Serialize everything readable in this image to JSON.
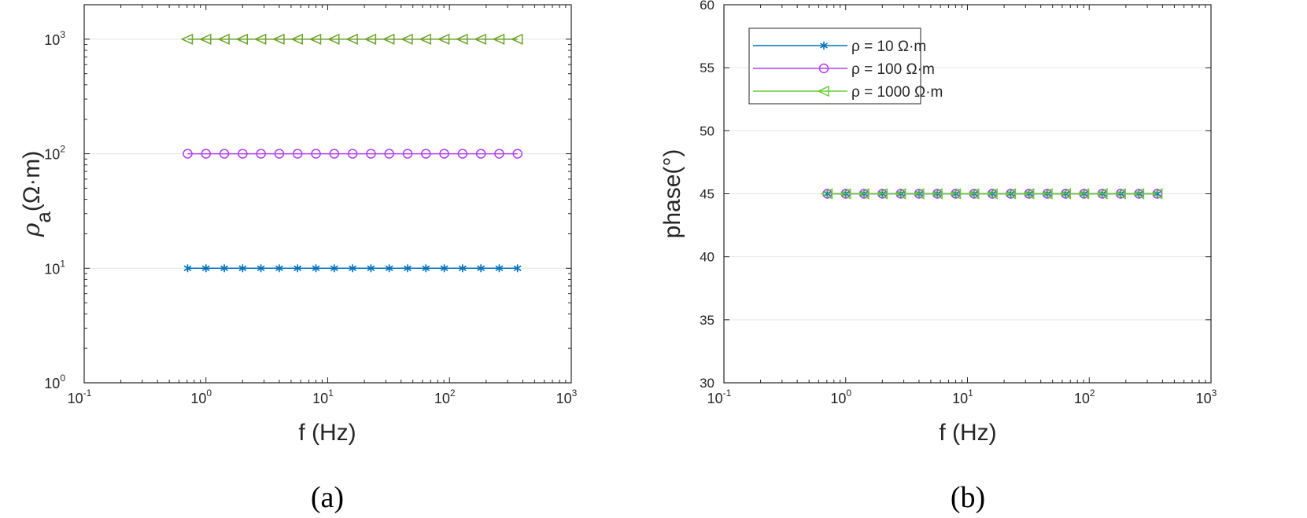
{
  "chart_data": [
    {
      "panel_label": "(a)",
      "type": "line",
      "xscale": "log",
      "yscale": "log",
      "xlabel": "f (Hz)",
      "ylabel_main": "ρ",
      "ylabel_sub": "a",
      "ylabel_unit": "(Ω·m)",
      "xlim": [
        0.1,
        1000
      ],
      "ylim": [
        1,
        2000
      ],
      "xticks": [
        {
          "base": "10",
          "exp": "-1",
          "v": 0.1
        },
        {
          "base": "10",
          "exp": "0",
          "v": 1
        },
        {
          "base": "10",
          "exp": "1",
          "v": 10
        },
        {
          "base": "10",
          "exp": "2",
          "v": 100
        },
        {
          "base": "10",
          "exp": "3",
          "v": 1000
        }
      ],
      "yticks": [
        {
          "base": "10",
          "exp": "0",
          "v": 1
        },
        {
          "base": "10",
          "exp": "1",
          "v": 10
        },
        {
          "base": "10",
          "exp": "2",
          "v": 100
        },
        {
          "base": "10",
          "exp": "3",
          "v": 1000
        }
      ],
      "grid": "y-major",
      "x": [
        0.707,
        1,
        1.414,
        2,
        2.828,
        4,
        5.657,
        8,
        11.31,
        16,
        22.63,
        32,
        45.25,
        64,
        90.51,
        128,
        181,
        256,
        362
      ],
      "series": [
        {
          "name": "ρ = 10 Ω·m",
          "value": 10,
          "marker": "asterisk",
          "color": "#0072BD"
        },
        {
          "name": "ρ = 100 Ω·m",
          "value": 100,
          "marker": "circle",
          "color": "#B140F0"
        },
        {
          "name": "ρ = 1000 Ω·m",
          "value": 1000,
          "marker": "triangle-left",
          "color": "#6AA32A"
        }
      ]
    },
    {
      "panel_label": "(b)",
      "type": "line",
      "xscale": "log",
      "yscale": "linear",
      "xlabel": "f (Hz)",
      "ylabel": "phase(°)",
      "xlim": [
        0.1,
        1000
      ],
      "ylim": [
        30,
        60
      ],
      "xticks": [
        {
          "base": "10",
          "exp": "-1",
          "v": 0.1
        },
        {
          "base": "10",
          "exp": "0",
          "v": 1
        },
        {
          "base": "10",
          "exp": "1",
          "v": 10
        },
        {
          "base": "10",
          "exp": "2",
          "v": 100
        },
        {
          "base": "10",
          "exp": "3",
          "v": 1000
        }
      ],
      "yticks": [
        {
          "label": "30",
          "v": 30
        },
        {
          "label": "35",
          "v": 35
        },
        {
          "label": "40",
          "v": 40
        },
        {
          "label": "45",
          "v": 45
        },
        {
          "label": "50",
          "v": 50
        },
        {
          "label": "55",
          "v": 55
        },
        {
          "label": "60",
          "v": 60
        }
      ],
      "grid": "y-major",
      "legend": "top-left",
      "x": [
        0.707,
        1,
        1.414,
        2,
        2.828,
        4,
        5.657,
        8,
        11.31,
        16,
        22.63,
        32,
        45.25,
        64,
        90.51,
        128,
        181,
        256,
        362
      ],
      "series": [
        {
          "name": "ρ = 10 Ω·m",
          "value": 45,
          "marker": "asterisk",
          "color": "#0072BD"
        },
        {
          "name": "ρ = 100 Ω·m",
          "value": 45,
          "marker": "circle",
          "color": "#B140F0"
        },
        {
          "name": "ρ = 1000 Ω·m",
          "value": 45,
          "marker": "triangle-left",
          "color": "#66CC33"
        }
      ]
    }
  ]
}
